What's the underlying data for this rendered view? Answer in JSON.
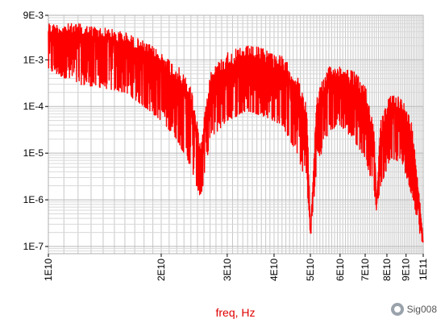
{
  "chart_data": {
    "type": "line",
    "xlabel": "freq, Hz",
    "ylabel": "",
    "x_scale": "log",
    "y_scale": "log",
    "xlim": [
      10000000000.0,
      100000000000.0
    ],
    "ylim": [
      7e-08,
      0.009
    ],
    "grid": true,
    "x_ticks": [
      {
        "value": 10000000000.0,
        "label": "1E10"
      },
      {
        "value": 20000000000.0,
        "label": "2E10"
      },
      {
        "value": 30000000000.0,
        "label": "3E10"
      },
      {
        "value": 40000000000.0,
        "label": "4E10"
      },
      {
        "value": 50000000000.0,
        "label": "5E10"
      },
      {
        "value": 60000000000.0,
        "label": "6E10"
      },
      {
        "value": 70000000000.0,
        "label": "7E10"
      },
      {
        "value": 80000000000.0,
        "label": "8E10"
      },
      {
        "value": 90000000000.0,
        "label": "9E10"
      },
      {
        "value": 100000000000.0,
        "label": "1E11"
      }
    ],
    "y_ticks": [
      {
        "value": 0.009,
        "label": "9E-3"
      },
      {
        "value": 0.001,
        "label": "1E-3"
      },
      {
        "value": 0.0001,
        "label": "1E-4"
      },
      {
        "value": 1e-05,
        "label": "1E-5"
      },
      {
        "value": 1e-06,
        "label": "1E-6"
      },
      {
        "value": 1e-07,
        "label": "1E-7"
      }
    ],
    "series": [
      {
        "color": "#ff0000",
        "envelope_upper": [
          [
            10000000000.0,
            0.006
          ],
          [
            12000000000.0,
            0.006
          ],
          [
            14000000000.0,
            0.005
          ],
          [
            16000000000.0,
            0.004
          ],
          [
            18000000000.0,
            0.0025
          ],
          [
            20000000000.0,
            0.0015
          ],
          [
            22000000000.0,
            0.0008
          ],
          [
            24000000000.0,
            0.0003
          ],
          [
            25500000000.0,
            1.5e-05
          ],
          [
            27000000000.0,
            0.0006
          ],
          [
            30000000000.0,
            0.0015
          ],
          [
            34000000000.0,
            0.002
          ],
          [
            38000000000.0,
            0.0018
          ],
          [
            42000000000.0,
            0.0012
          ],
          [
            46000000000.0,
            0.0005
          ],
          [
            49000000000.0,
            0.0001
          ],
          [
            50000000000.0,
            2e-07
          ],
          [
            52000000000.0,
            0.0002
          ],
          [
            56000000000.0,
            0.0007
          ],
          [
            60000000000.0,
            0.0008
          ],
          [
            65000000000.0,
            0.0006
          ],
          [
            70000000000.0,
            0.0003
          ],
          [
            74000000000.0,
            4e-05
          ],
          [
            75000000000.0,
            1e-06
          ],
          [
            77000000000.0,
            5e-05
          ],
          [
            82000000000.0,
            0.0002
          ],
          [
            88000000000.0,
            0.00015
          ],
          [
            94000000000.0,
            4e-05
          ],
          [
            100000000000.0,
            1.5e-07
          ]
        ],
        "envelope_lower": [
          [
            10000000000.0,
            0.0006
          ],
          [
            12000000000.0,
            0.0003
          ],
          [
            14000000000.0,
            0.00025
          ],
          [
            16000000000.0,
            0.0002
          ],
          [
            18000000000.0,
            0.0001
          ],
          [
            20000000000.0,
            5e-05
          ],
          [
            22000000000.0,
            2e-05
          ],
          [
            24000000000.0,
            5e-06
          ],
          [
            25500000000.0,
            1e-06
          ],
          [
            27000000000.0,
            2e-05
          ],
          [
            30000000000.0,
            5e-05
          ],
          [
            34000000000.0,
            8e-05
          ],
          [
            38000000000.0,
            6e-05
          ],
          [
            42000000000.0,
            4e-05
          ],
          [
            46000000000.0,
            1e-05
          ],
          [
            49000000000.0,
            2e-06
          ],
          [
            50000000000.0,
            1.3e-07
          ],
          [
            52000000000.0,
            5e-06
          ],
          [
            56000000000.0,
            3e-05
          ],
          [
            60000000000.0,
            4e-05
          ],
          [
            65000000000.0,
            2e-05
          ],
          [
            70000000000.0,
            8e-06
          ],
          [
            74000000000.0,
            1.5e-06
          ],
          [
            75000000000.0,
            6e-07
          ],
          [
            77000000000.0,
            2e-06
          ],
          [
            82000000000.0,
            8e-06
          ],
          [
            88000000000.0,
            6e-06
          ],
          [
            94000000000.0,
            1e-06
          ],
          [
            100000000000.0,
            8e-08
          ]
        ]
      }
    ]
  },
  "watermark": {
    "text": "Sig008",
    "icon": "wechat-icon"
  }
}
